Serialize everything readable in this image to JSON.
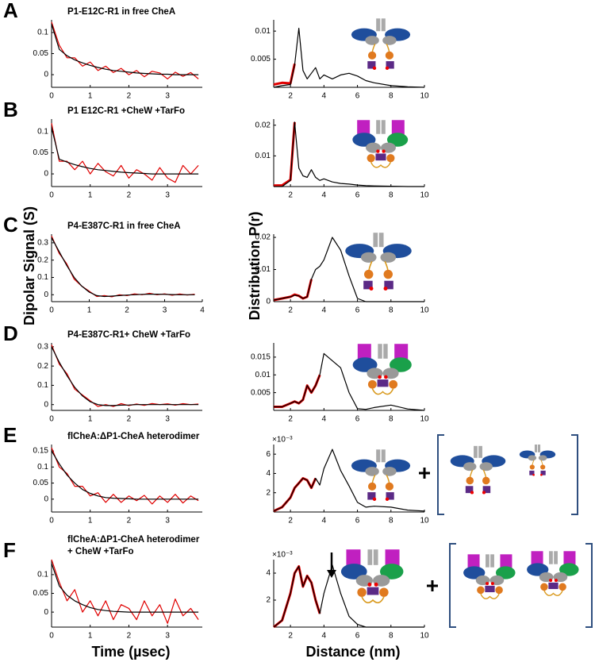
{
  "figure": {
    "y_label_left": "Dipolar Signal (S)",
    "y_label_right": "Distribution  P(r)",
    "x_label_left": "Time (µsec)",
    "x_label_right": "Distance (nm)"
  },
  "chart_data": [
    {
      "type": "line",
      "panel": "A",
      "title": "P1-E12C-R1 in free CheA",
      "x": [
        0,
        0.2,
        0.4,
        0.6,
        0.8,
        1,
        1.2,
        1.4,
        1.6,
        1.8,
        2,
        2.2,
        2.4,
        2.6,
        2.8,
        3,
        3.2,
        3.4,
        3.6,
        3.8
      ],
      "xlim": [
        0,
        3.9
      ],
      "xticks": [
        0,
        1,
        2,
        3
      ],
      "ylim": [
        -0.03,
        0.13
      ],
      "yticks": [
        0,
        0.05,
        0.1
      ],
      "series": [
        {
          "color": "#e00000",
          "values": [
            0.125,
            0.07,
            0.04,
            0.04,
            0.02,
            0.03,
            0.01,
            0.02,
            0.005,
            0.015,
            0,
            0.01,
            -0.005,
            0.008,
            0.004,
            -0.01,
            0.006,
            -0.004,
            0.005,
            -0.01
          ]
        },
        {
          "color": "#000000",
          "values": [
            0.12,
            0.06,
            0.045,
            0.035,
            0.028,
            0.022,
            0.017,
            0.013,
            0.01,
            0.008,
            0.006,
            0.004,
            0.003,
            0.002,
            0.001,
            0.001,
            0,
            0,
            0,
            0
          ]
        }
      ]
    },
    {
      "type": "line",
      "x": [
        1,
        1.5,
        2,
        2.25,
        2.5,
        2.75,
        3,
        3.25,
        3.5,
        3.75,
        4,
        4.5,
        5,
        5.5,
        6,
        6.5,
        7,
        8,
        9,
        10
      ],
      "xlim": [
        1,
        10
      ],
      "xticks": [
        2,
        4,
        6,
        8,
        10
      ],
      "ylim": [
        0,
        0.012
      ],
      "yticks": [
        0.005,
        0.01
      ],
      "series": [
        {
          "color": "#e00000",
          "values": [
            0.0005,
            0.0008,
            0.0007,
            0.0042,
            null,
            null,
            null,
            null,
            null,
            null,
            null,
            null,
            null,
            null,
            null,
            null,
            null,
            null,
            null,
            null
          ]
        },
        {
          "color": "#000000",
          "values": [
            0,
            0.0003,
            0.0005,
            0.004,
            0.0105,
            0.003,
            0.0015,
            0.0025,
            0.0035,
            0.0015,
            0.0022,
            0.0015,
            0.0022,
            0.0025,
            0.002,
            0.0012,
            0.0008,
            0.0003,
            0.0001,
            0
          ]
        }
      ]
    },
    {
      "type": "line",
      "panel": "B",
      "title": "P1 E12C-R1 +CheW +TarFo",
      "x": [
        0,
        0.2,
        0.4,
        0.6,
        0.8,
        1,
        1.2,
        1.4,
        1.6,
        1.8,
        2,
        2.2,
        2.4,
        2.6,
        2.8,
        3,
        3.2,
        3.4,
        3.6,
        3.8
      ],
      "xlim": [
        0,
        3.9
      ],
      "xticks": [
        0,
        1,
        2,
        3
      ],
      "ylim": [
        -0.03,
        0.13
      ],
      "yticks": [
        0,
        0.05,
        0.1
      ],
      "series": [
        {
          "color": "#e00000",
          "values": [
            0.12,
            0.03,
            0.03,
            0.01,
            0.03,
            0,
            0.025,
            0.005,
            -0.005,
            0.02,
            -0.01,
            0.01,
            0,
            -0.015,
            0.015,
            -0.01,
            -0.02,
            0.02,
            0,
            0.02
          ]
        },
        {
          "color": "#000000",
          "values": [
            0.11,
            0.035,
            0.028,
            0.022,
            0.017,
            0.013,
            0.01,
            0.008,
            0.006,
            0.004,
            0.003,
            0.002,
            0.001,
            0,
            0,
            0,
            0,
            0,
            0,
            0
          ]
        }
      ]
    },
    {
      "type": "line",
      "x": [
        1,
        1.5,
        2,
        2.25,
        2.5,
        2.75,
        3,
        3.25,
        3.5,
        3.75,
        4,
        4.5,
        5,
        5.5,
        6,
        6.5,
        7,
        8,
        9,
        10
      ],
      "xlim": [
        1,
        10
      ],
      "xticks": [
        2,
        4,
        6,
        8,
        10
      ],
      "ylim": [
        0,
        0.022
      ],
      "yticks": [
        0.01,
        0.02
      ],
      "series": [
        {
          "color": "#e00000",
          "values": [
            0.0003,
            0.0004,
            0.0022,
            0.021,
            null,
            null,
            null,
            null,
            null,
            null,
            null,
            null,
            null,
            null,
            null,
            null,
            null,
            null,
            null,
            null
          ]
        },
        {
          "color": "#000000",
          "values": [
            0,
            0,
            0.002,
            0.021,
            0.006,
            0.0035,
            0.003,
            0.0055,
            0.003,
            0.002,
            0.0025,
            0.0015,
            0.001,
            0.0008,
            0.0005,
            0.0003,
            0.0002,
            0.0001,
            0,
            0
          ]
        }
      ]
    },
    {
      "type": "line",
      "panel": "C",
      "title": "P4-E387C-R1 in free CheA",
      "x": [
        0,
        0.2,
        0.4,
        0.6,
        0.8,
        1,
        1.2,
        1.4,
        1.6,
        1.8,
        2,
        2.2,
        2.4,
        2.6,
        2.8,
        3,
        3.2,
        3.4,
        3.6,
        3.8
      ],
      "xlim": [
        0,
        4
      ],
      "xticks": [
        0,
        1,
        2,
        3,
        4
      ],
      "ylim": [
        -0.04,
        0.35
      ],
      "yticks": [
        0,
        0.1,
        0.2,
        0.3
      ],
      "series": [
        {
          "color": "#e00000",
          "values": [
            0.34,
            0.24,
            0.18,
            0.09,
            0.05,
            0.02,
            -0.01,
            -0.005,
            -0.012,
            0,
            -0.005,
            0.005,
            0,
            0.008,
            0,
            0.005,
            -0.003,
            0.004,
            -0.002,
            0.003
          ]
        },
        {
          "color": "#000000",
          "values": [
            0.33,
            0.25,
            0.17,
            0.1,
            0.05,
            0.015,
            -0.005,
            -0.01,
            -0.008,
            -0.005,
            -0.002,
            0,
            0.002,
            0.003,
            0.003,
            0.002,
            0.001,
            0,
            0,
            0
          ]
        }
      ]
    },
    {
      "type": "line",
      "x": [
        1,
        1.5,
        2,
        2.25,
        2.5,
        2.75,
        3,
        3.25,
        3.5,
        3.75,
        4,
        4.5,
        5,
        5.5,
        6,
        6.5,
        7,
        8,
        9,
        10
      ],
      "xlim": [
        1,
        10
      ],
      "xticks": [
        2,
        4,
        6,
        8,
        10
      ],
      "ylim": [
        0,
        0.021
      ],
      "yticks": [
        0,
        0.01,
        0.02
      ],
      "series": [
        {
          "color": "#e00000",
          "values": [
            0.0005,
            0.001,
            0.0015,
            0.0022,
            0.0018,
            0.001,
            0.0015,
            0.007,
            null,
            null,
            null,
            null,
            null,
            null,
            null,
            null,
            null,
            null,
            null,
            null
          ]
        },
        {
          "color": "#000000",
          "values": [
            0.0005,
            0.001,
            0.0015,
            0.002,
            0.0018,
            0.001,
            0.0015,
            0.007,
            0.01,
            0.011,
            0.013,
            0.02,
            0.016,
            0.008,
            0.001,
            0,
            0,
            0,
            0,
            0
          ]
        }
      ]
    },
    {
      "type": "line",
      "panel": "D",
      "title": "P4-E387C-R1+ CheW +TarFo",
      "x": [
        0,
        0.2,
        0.4,
        0.6,
        0.8,
        1,
        1.2,
        1.4,
        1.6,
        1.8,
        2,
        2.2,
        2.4,
        2.6,
        2.8,
        3,
        3.2,
        3.4,
        3.6,
        3.8
      ],
      "xlim": [
        0,
        3.9
      ],
      "xticks": [
        0,
        1,
        2,
        3
      ],
      "ylim": [
        -0.03,
        0.32
      ],
      "yticks": [
        0,
        0.1,
        0.2,
        0.3
      ],
      "series": [
        {
          "color": "#e00000",
          "values": [
            0.31,
            0.21,
            0.16,
            0.08,
            0.05,
            0.02,
            -0.01,
            0,
            -0.01,
            0.005,
            -0.005,
            0.003,
            -0.004,
            0.006,
            0,
            0.004,
            -0.003,
            0.005,
            0,
            0.003
          ]
        },
        {
          "color": "#000000",
          "values": [
            0.3,
            0.22,
            0.15,
            0.09,
            0.045,
            0.015,
            0,
            -0.005,
            -0.005,
            -0.003,
            -0.002,
            0,
            0,
            0,
            0,
            0,
            0,
            0,
            0,
            0
          ]
        }
      ]
    },
    {
      "type": "line",
      "x": [
        1,
        1.5,
        2,
        2.25,
        2.5,
        2.75,
        3,
        3.25,
        3.5,
        3.75,
        4,
        4.5,
        5,
        5.5,
        6,
        6.5,
        7,
        8,
        9,
        10
      ],
      "xlim": [
        1,
        10
      ],
      "xticks": [
        2,
        4,
        6,
        8,
        10
      ],
      "ylim": [
        0,
        0.019
      ],
      "yticks": [
        0.005,
        0.01,
        0.015
      ],
      "series": [
        {
          "color": "#e00000",
          "values": [
            0.001,
            0.001,
            0.002,
            0.0025,
            0.002,
            0.003,
            0.007,
            0.005,
            0.007,
            0.01,
            null,
            null,
            null,
            null,
            null,
            null,
            null,
            null,
            null,
            null
          ]
        },
        {
          "color": "#000000",
          "values": [
            0.001,
            0.001,
            0.002,
            0.0025,
            0.002,
            0.003,
            0.007,
            0.005,
            0.007,
            0.01,
            0.016,
            0.014,
            0.012,
            0.005,
            0.0005,
            0.0003,
            0.0008,
            0.0015,
            0.0004,
            0
          ]
        }
      ]
    },
    {
      "type": "line",
      "panel": "E",
      "title": "flCheA:ΔP1-CheA heterodimer",
      "x": [
        0,
        0.2,
        0.4,
        0.6,
        0.8,
        1,
        1.2,
        1.4,
        1.6,
        1.8,
        2,
        2.2,
        2.4,
        2.6,
        2.8,
        3,
        3.2,
        3.4,
        3.6,
        3.8
      ],
      "xlim": [
        0,
        3.9
      ],
      "xticks": [
        0,
        1,
        2,
        3
      ],
      "ylim": [
        -0.04,
        0.17
      ],
      "yticks": [
        0,
        0.05,
        0.1,
        0.15
      ],
      "series": [
        {
          "color": "#e00000",
          "values": [
            0.16,
            0.1,
            0.08,
            0.04,
            0.04,
            0.01,
            0.02,
            -0.01,
            0.015,
            -0.01,
            0.01,
            -0.005,
            0.012,
            -0.015,
            0.01,
            -0.01,
            0.015,
            -0.012,
            0.01,
            -0.005
          ]
        },
        {
          "color": "#000000",
          "values": [
            0.15,
            0.11,
            0.075,
            0.05,
            0.03,
            0.018,
            0.01,
            0.005,
            0.003,
            0.002,
            0.001,
            0,
            0,
            0,
            0,
            0,
            0,
            0,
            0,
            0
          ]
        }
      ]
    },
    {
      "type": "line",
      "axis_note": "×10⁻³",
      "x": [
        1,
        1.5,
        2,
        2.25,
        2.5,
        2.75,
        3,
        3.25,
        3.5,
        3.75,
        4,
        4.5,
        5,
        5.5,
        6,
        6.5,
        7,
        8,
        9,
        10
      ],
      "xlim": [
        1,
        10
      ],
      "xticks": [
        2,
        4,
        6,
        8,
        10
      ],
      "ylim": [
        0,
        7
      ],
      "yticks": [
        2,
        4,
        6
      ],
      "series": [
        {
          "color": "#e00000",
          "values": [
            0.1,
            0.5,
            1.5,
            2.5,
            3,
            3.5,
            3.3,
            2.5,
            3.5,
            null,
            null,
            null,
            null,
            null,
            null,
            null,
            null,
            null,
            null,
            null
          ]
        },
        {
          "color": "#000000",
          "values": [
            0.1,
            0.5,
            1.5,
            2.5,
            3,
            3.5,
            3.3,
            2.5,
            3.5,
            2.8,
            4.5,
            6.5,
            4.3,
            2.7,
            1,
            0.5,
            0.6,
            0.5,
            0.2,
            0.1
          ]
        }
      ]
    },
    {
      "type": "line",
      "panel": "F",
      "title": "flCheA:ΔP1-CheA heterodimer",
      "subtitle": "+ CheW +TarFo",
      "x": [
        0,
        0.2,
        0.4,
        0.6,
        0.8,
        1,
        1.2,
        1.4,
        1.6,
        1.8,
        2,
        2.2,
        2.4,
        2.6,
        2.8,
        3,
        3.2,
        3.4,
        3.6,
        3.8
      ],
      "xlim": [
        0,
        3.9
      ],
      "xticks": [
        0,
        1,
        2,
        3
      ],
      "ylim": [
        -0.04,
        0.14
      ],
      "yticks": [
        0,
        0.05,
        0.1
      ],
      "series": [
        {
          "color": "#e00000",
          "values": [
            0.14,
            0.08,
            0.03,
            0.06,
            0,
            0.03,
            -0.01,
            0.03,
            -0.02,
            0.02,
            0.01,
            -0.02,
            0.03,
            -0.01,
            0.02,
            -0.03,
            0.035,
            -0.01,
            0.01,
            -0.02
          ]
        },
        {
          "color": "#000000",
          "values": [
            0.13,
            0.07,
            0.045,
            0.03,
            0.02,
            0.012,
            0.007,
            0.004,
            0.002,
            0.001,
            0,
            0,
            0,
            0,
            0,
            0,
            0,
            0,
            0,
            0
          ]
        }
      ]
    },
    {
      "type": "line",
      "axis_note": "×10⁻³",
      "x": [
        1,
        1.5,
        2,
        2.25,
        2.5,
        2.75,
        3,
        3.25,
        3.5,
        3.75,
        4,
        4.5,
        5,
        5.5,
        6,
        6.5,
        7,
        8,
        9,
        10
      ],
      "xlim": [
        1,
        10
      ],
      "xticks": [
        2,
        4,
        6,
        8,
        10
      ],
      "ylim": [
        0,
        5
      ],
      "yticks": [
        2,
        4
      ],
      "series": [
        {
          "color": "#e00000",
          "values": [
            0,
            0.5,
            2.5,
            4,
            4.5,
            3,
            3.8,
            3.3,
            2,
            1,
            null,
            null,
            null,
            null,
            null,
            null,
            null,
            null,
            null,
            null
          ]
        },
        {
          "color": "#000000",
          "values": [
            0,
            0.5,
            2.5,
            4,
            4.5,
            3,
            3.8,
            3.3,
            2,
            1,
            2.5,
            4.6,
            2.5,
            0.8,
            0.2,
            0,
            0,
            0,
            0,
            0
          ]
        }
      ]
    }
  ]
}
